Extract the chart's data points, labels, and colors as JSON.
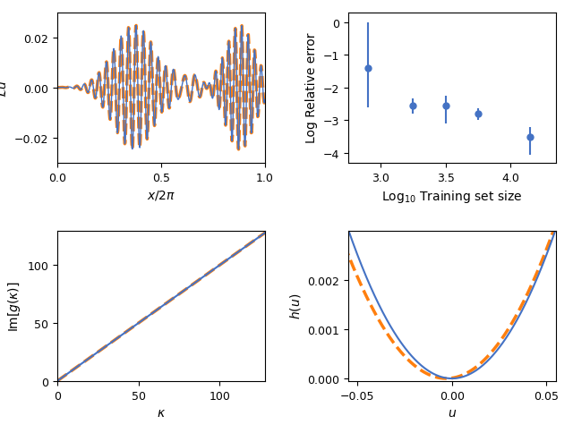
{
  "blue_color": "#4472C4",
  "orange_color": "#FF7F0E",
  "error_x": [
    2.9,
    3.25,
    3.5,
    3.75,
    4.15
  ],
  "error_y": [
    -1.4,
    -2.55,
    -2.55,
    -2.8,
    -3.5
  ],
  "error_yerr_low": [
    1.2,
    0.25,
    0.55,
    0.2,
    0.55
  ],
  "error_yerr_high": [
    1.4,
    0.2,
    0.3,
    0.15,
    0.3
  ],
  "error_xlabel": "Log$_{10}$ Training set size",
  "error_ylabel": "Log Relative error",
  "error_xlim": [
    2.75,
    4.35
  ],
  "error_ylim": [
    -4.3,
    0.3
  ],
  "error_xticks": [
    3.0,
    3.5,
    4.0
  ],
  "error_yticks": [
    0,
    -1,
    -2,
    -3,
    -4
  ],
  "lu_xlabel": "$x/2\\pi$",
  "lu_ylabel": "$\\mathcal{L}u$",
  "lu_xlim": [
    0.0,
    1.0
  ],
  "lu_ylim": [
    -0.03,
    0.03
  ],
  "img_kappa_max": 128,
  "img_slope": 1.0,
  "img_xlabel": "$\\kappa$",
  "img_ylabel": "Im$[g(\\kappa)]$",
  "img_xlim": [
    0,
    128
  ],
  "img_ylim": [
    0,
    130
  ],
  "img_xticks": [
    0,
    50,
    100
  ],
  "img_yticks": [
    0,
    50,
    100
  ],
  "hu_xlabel": "$u$",
  "hu_ylabel": "$h(u)$",
  "hu_xlim": [
    -0.055,
    0.055
  ],
  "hu_ylim": [
    -5e-05,
    0.003
  ],
  "hu_xticks": [
    -0.05,
    0.0,
    0.05
  ],
  "hu_yticks": [
    0.0,
    0.001,
    0.002
  ],
  "hu_coeff_blue": 1.0,
  "hu_coeff_orange": 0.95,
  "hu_shift_orange": -0.003
}
